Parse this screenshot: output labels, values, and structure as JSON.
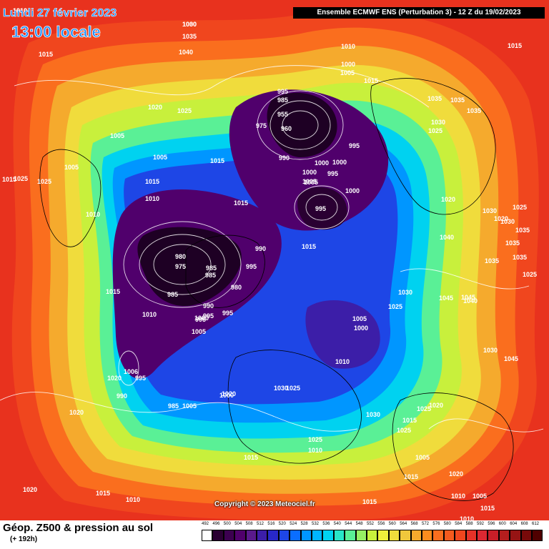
{
  "header": {
    "date": "Lundi 27 février 2023",
    "local_time": "13:00 locale",
    "run_info": "Ensemble ECMWF ENS  (Perturbation 3)  -  12 Z du 19/02/2023"
  },
  "copyright": "Copyright © 2023 Meteociel.fr",
  "footer": {
    "title": "Géop. Z500 & pression au sol",
    "subtitle": "(+ 192h)"
  },
  "color_scale": {
    "ticks": [
      "492",
      "496",
      "500",
      "504",
      "508",
      "512",
      "516",
      "520",
      "524",
      "528",
      "532",
      "536",
      "540",
      "544",
      "548",
      "552",
      "556",
      "560",
      "564",
      "568",
      "572",
      "576",
      "580",
      "584",
      "588",
      "592",
      "596",
      "600",
      "604",
      "608",
      "612"
    ],
    "colors": [
      "#ffffff",
      "#2a0032",
      "#3c0050",
      "#50006c",
      "#5a1a8c",
      "#3c1ea8",
      "#2828c8",
      "#1e46e6",
      "#0a6eff",
      "#0096ff",
      "#00b4ff",
      "#00d2f0",
      "#28e6c8",
      "#5af096",
      "#96f064",
      "#c8f03c",
      "#f0f03c",
      "#f0dc3c",
      "#f0c83c",
      "#f5aa2d",
      "#fa8c1e",
      "#fa6e1e",
      "#f55a1e",
      "#f0461e",
      "#e63228",
      "#dc2832",
      "#c81e28",
      "#b41e1e",
      "#961414",
      "#780a0a",
      "#500000"
    ]
  },
  "pressure_labels": [
    "1010",
    "1030",
    "1035",
    "1040",
    "1015",
    "1015",
    "1010",
    "1000",
    "1005",
    "1015",
    "1020",
    "1025",
    "995",
    "985",
    "955",
    "975",
    "960",
    "995",
    "1005",
    "990",
    "1015",
    "1035",
    "1035",
    "1035",
    "1030",
    "1025",
    "1005",
    "1005",
    "1015",
    "1025",
    "1025",
    "1015",
    "1015",
    "1010",
    "1010",
    "1005",
    "1000",
    "1005",
    "1000",
    "995",
    "1000",
    "995",
    "1000",
    "1020",
    "1030",
    "1030",
    "1025",
    "1020",
    "1035",
    "1040",
    "1015",
    "990",
    "995",
    "980",
    "975",
    "985",
    "985",
    "1035",
    "1035",
    "1035",
    "1025",
    "1015",
    "985",
    "980",
    "990",
    "995",
    "1010",
    "1000",
    "1005",
    "995",
    "1045",
    "1030",
    "1025",
    "1040",
    "1045",
    "1005",
    "1000",
    "1010",
    "1030",
    "1045",
    "1020",
    "995",
    "1006",
    "990",
    "985",
    "1005",
    "995",
    "1000",
    "1020",
    "1030",
    "1025",
    "1020",
    "1025",
    "1030",
    "1015",
    "1025",
    "1025",
    "1010",
    "1005",
    "1015",
    "1020",
    "1020",
    "1015",
    "1010",
    "1015",
    "1020",
    "1015",
    "1010",
    "1005",
    "1010",
    "1015",
    "1010",
    "1000"
  ]
}
